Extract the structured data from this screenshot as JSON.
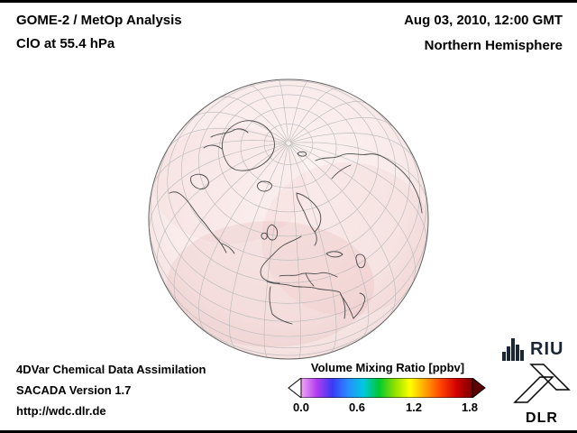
{
  "header": {
    "product_line1": "GOME-2 / MetOp Analysis",
    "product_line2": "ClO at 55.4 hPa",
    "datetime": "Aug 03, 2010, 12:00 GMT",
    "region": "Northern Hemisphere"
  },
  "footer": {
    "line1": "4DVar Chemical Data Assimilation",
    "line2": "SACADA Version 1.7",
    "line3": "http://wdc.dlr.de"
  },
  "colorbar": {
    "label": "Volume Mixing Ratio [ppbv]",
    "ticks": [
      "0.0",
      "0.6",
      "1.2",
      "1.8"
    ],
    "min": 0.0,
    "max": 1.8,
    "unit": "ppbv",
    "left_arrow_color": "#ffffff",
    "right_arrow_color": "#5c0000",
    "gradient": [
      "#f2a9f2",
      "#b13cf0",
      "#3a3af5",
      "#2a8cff",
      "#00c8e0",
      "#00c830",
      "#8ce000",
      "#ffff00",
      "#ffa000",
      "#ff4000",
      "#d00000",
      "#7a0000"
    ]
  },
  "logos": {
    "riu": "RIU",
    "dlr": "DLR"
  },
  "colors": {
    "globe_tint": "#f8eae9",
    "graticule": "#b8b8b8",
    "coastline": "#4a4a4a"
  }
}
